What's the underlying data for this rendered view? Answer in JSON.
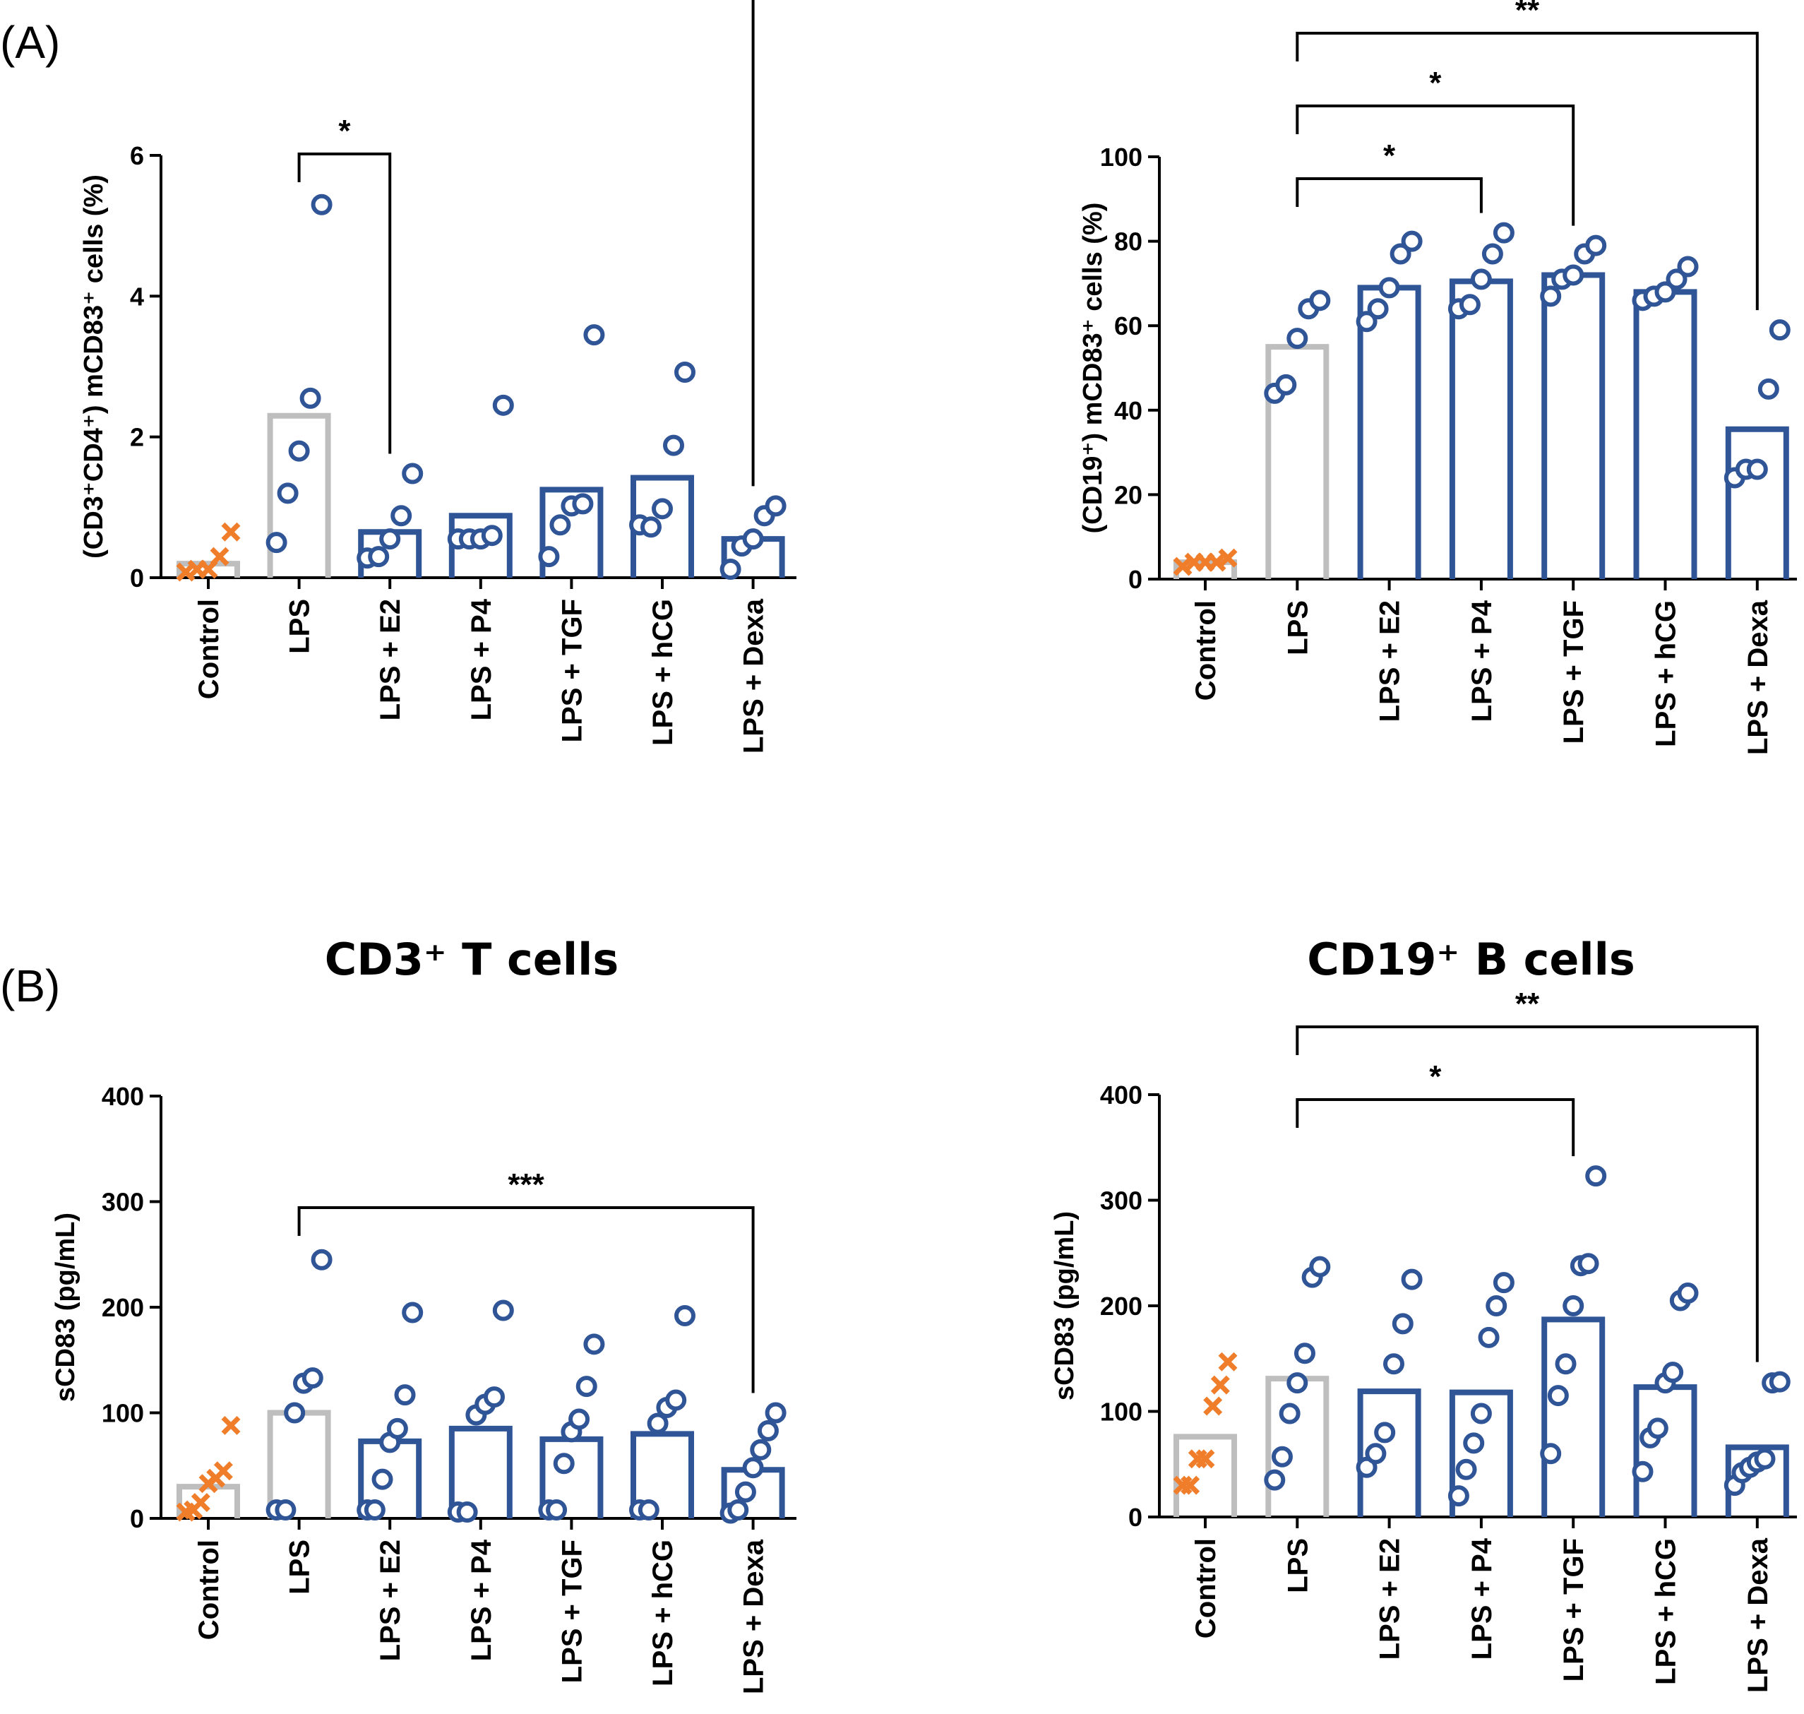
{
  "panel_labels": [
    "(A)",
    "(B)"
  ],
  "colors": {
    "control_marker": "#F07D2A",
    "lps_bar": "#BEBEBE",
    "treatment_bar": "#2F5597",
    "point": "#2F5597",
    "axis": "#000000"
  },
  "chart_data": [
    {
      "type": "bar",
      "title": "",
      "xlabel": "",
      "ylabel": "(CD3⁺CD4⁺) mCD83⁺ cells (%)",
      "ylim": [
        0,
        6
      ],
      "yticks": [
        0,
        2,
        4,
        6
      ],
      "categories": [
        "Control",
        "LPS",
        "LPS + E2",
        "LPS + P4",
        "LPS + TGF",
        "LPS + hCG",
        "LPS + Dexa"
      ],
      "values": [
        0.2,
        2.3,
        0.65,
        0.88,
        1.25,
        1.42,
        0.55
      ],
      "points": [
        [
          0.08,
          0.12,
          0.12,
          0.3,
          0.65
        ],
        [
          0.5,
          1.2,
          1.8,
          2.55,
          5.3
        ],
        [
          0.28,
          0.3,
          0.55,
          0.88,
          1.48
        ],
        [
          0.55,
          0.55,
          0.55,
          0.6,
          2.45
        ],
        [
          0.3,
          0.75,
          1.02,
          1.05,
          3.45
        ],
        [
          0.75,
          0.72,
          0.98,
          1.88,
          2.92
        ],
        [
          0.12,
          0.45,
          0.55,
          0.88,
          1.02
        ]
      ],
      "significance": [
        {
          "from": 1,
          "to": 2,
          "label": "*",
          "level": 0
        },
        {
          "from": 1,
          "to": 6,
          "label": "*",
          "level": 1
        }
      ]
    },
    {
      "type": "bar",
      "title": "",
      "xlabel": "",
      "ylabel": "(CD19⁺) mCD83⁺ cells (%)",
      "ylim": [
        0,
        100
      ],
      "yticks": [
        0,
        20,
        40,
        60,
        80,
        100
      ],
      "categories": [
        "Control",
        "LPS",
        "LPS + E2",
        "LPS + P4",
        "LPS + TGF",
        "LPS + hCG",
        "LPS + Dexa"
      ],
      "values": [
        4,
        55,
        69,
        70.5,
        72,
        68,
        35.5
      ],
      "points": [
        [
          3,
          4,
          4,
          4,
          5
        ],
        [
          44,
          46,
          57,
          64,
          66
        ],
        [
          61,
          64,
          69,
          77,
          80
        ],
        [
          64,
          65,
          71,
          77,
          82
        ],
        [
          67,
          71,
          72,
          77,
          79
        ],
        [
          66,
          67,
          68,
          71,
          74
        ],
        [
          24,
          26,
          26,
          45,
          59
        ]
      ],
      "significance": [
        {
          "from": 1,
          "to": 3,
          "label": "*",
          "level": 0
        },
        {
          "from": 1,
          "to": 4,
          "label": "*",
          "level": 1
        },
        {
          "from": 1,
          "to": 6,
          "label": "**",
          "level": 2
        }
      ]
    },
    {
      "type": "bar",
      "title": "CD3⁺ T cells",
      "xlabel": "",
      "ylabel": "sCD83 (pg/mL)",
      "ylim": [
        0,
        400
      ],
      "yticks": [
        0,
        100,
        200,
        300,
        400
      ],
      "categories": [
        "Control",
        "LPS",
        "LPS + E2",
        "LPS + P4",
        "LPS + TGF",
        "LPS + hCG",
        "LPS + Dexa"
      ],
      "values": [
        30,
        100,
        73,
        85,
        75,
        80,
        46
      ],
      "points": [
        [
          6,
          8,
          15,
          33,
          38,
          45,
          88
        ],
        [
          8,
          8,
          100,
          128,
          133,
          245
        ],
        [
          8,
          8,
          37,
          72,
          85,
          117,
          195
        ],
        [
          6,
          6,
          98,
          108,
          115,
          197
        ],
        [
          8,
          8,
          52,
          82,
          94,
          125,
          165
        ],
        [
          8,
          8,
          90,
          105,
          112,
          192
        ],
        [
          5,
          8,
          25,
          48,
          65,
          83,
          100
        ]
      ],
      "significance": [
        {
          "from": 1,
          "to": 6,
          "label": "***",
          "level": 0
        }
      ]
    },
    {
      "type": "bar",
      "title": "CD19⁺ B cells",
      "xlabel": "",
      "ylabel": "sCD83 (pg/mL)",
      "ylim": [
        0,
        400
      ],
      "yticks": [
        0,
        100,
        200,
        300,
        400
      ],
      "categories": [
        "Control",
        "LPS",
        "LPS + E2",
        "LPS + P4",
        "LPS + TGF",
        "LPS + hCG",
        "LPS + Dexa"
      ],
      "values": [
        76,
        131,
        119,
        118,
        187,
        123,
        66
      ],
      "points": [
        [
          30,
          30,
          55,
          55,
          105,
          125,
          147
        ],
        [
          35,
          57,
          98,
          127,
          155,
          227,
          237
        ],
        [
          47,
          60,
          80,
          145,
          183,
          225
        ],
        [
          20,
          45,
          70,
          98,
          170,
          200,
          222
        ],
        [
          60,
          115,
          145,
          200,
          238,
          240,
          323
        ],
        [
          43,
          75,
          84,
          127,
          137,
          205,
          212
        ],
        [
          30,
          42,
          47,
          52,
          55,
          127,
          128
        ]
      ],
      "significance": [
        {
          "from": 1,
          "to": 4,
          "label": "*",
          "level": 0
        },
        {
          "from": 1,
          "to": 6,
          "label": "**",
          "level": 1
        }
      ]
    }
  ]
}
